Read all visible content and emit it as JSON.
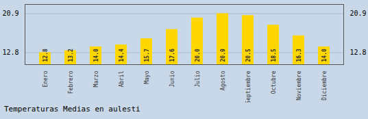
{
  "chart_data": {
    "type": "bar",
    "title": "Temperaturas Medias en aulesti",
    "categories": [
      "Enero",
      "Febrero",
      "Marzo",
      "Abril",
      "Mayo",
      "Junio",
      "Julio",
      "Agosto",
      "Septiembre",
      "Octubre",
      "Noviembre",
      "Diciembre"
    ],
    "values": [
      12.8,
      13.2,
      14.0,
      14.4,
      15.7,
      17.6,
      20.0,
      20.9,
      20.5,
      18.5,
      16.3,
      14.0
    ],
    "value_labels": [
      "12.8",
      "13.2",
      "14.0",
      "14.4",
      "15.7",
      "17.6",
      "20.0",
      "20.9",
      "20.5",
      "18.5",
      "16.3",
      "14.0"
    ],
    "color": "#FFD700",
    "ylim": [
      10.3,
      22.8
    ],
    "yticks": [
      12.8,
      20.9
    ],
    "grid": true,
    "data_labels": true
  }
}
